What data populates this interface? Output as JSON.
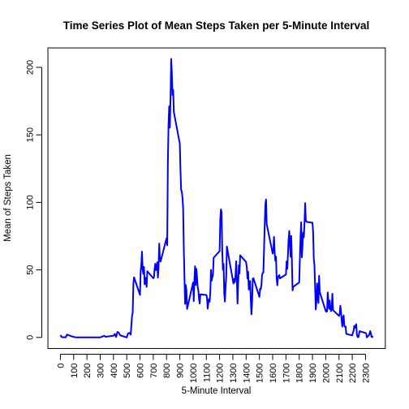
{
  "chart_data": {
    "type": "line",
    "title": "Time Series Plot of Mean Steps Taken per 5-Minute Interval",
    "xlabel": "5-Minute Interval",
    "ylabel": "Mean of Steps Taken",
    "xlim": [
      -94.2,
      2449.2
    ],
    "ylim": [
      -8.2,
      214.4
    ],
    "xticks": [
      0,
      100,
      200,
      300,
      400,
      500,
      600,
      700,
      800,
      900,
      1000,
      1100,
      1200,
      1300,
      1400,
      1500,
      1600,
      1700,
      1800,
      1900,
      2000,
      2100,
      2200,
      2300
    ],
    "yticks": [
      0,
      50,
      100,
      150,
      200
    ],
    "grid": false,
    "series": [
      {
        "color": "#0000ff",
        "points": [
          [
            0,
            1.7
          ],
          [
            10,
            0.3
          ],
          [
            20,
            0.1
          ],
          [
            30,
            0.2
          ],
          [
            40,
            0.0
          ],
          [
            50,
            2.1
          ],
          [
            100,
            0.3
          ],
          [
            110,
            0.2
          ],
          [
            120,
            0.0
          ],
          [
            200,
            0.0
          ],
          [
            300,
            0.0
          ],
          [
            330,
            1.2
          ],
          [
            340,
            0.5
          ],
          [
            400,
            1.2
          ],
          [
            410,
            2.6
          ],
          [
            420,
            0.3
          ],
          [
            430,
            4.1
          ],
          [
            440,
            3.5
          ],
          [
            450,
            1.6
          ],
          [
            500,
            0.0
          ],
          [
            510,
            3.0
          ],
          [
            520,
            3.3
          ],
          [
            530,
            2.1
          ],
          [
            540,
            16.0
          ],
          [
            545,
            18.3
          ],
          [
            550,
            39.5
          ],
          [
            555,
            44.5
          ],
          [
            600,
            31.5
          ],
          [
            605,
            49.3
          ],
          [
            610,
            53.8
          ],
          [
            615,
            63.5
          ],
          [
            620,
            50.0
          ],
          [
            625,
            47.1
          ],
          [
            630,
            52.2
          ],
          [
            635,
            39.3
          ],
          [
            640,
            44.0
          ],
          [
            645,
            44.2
          ],
          [
            650,
            37.4
          ],
          [
            655,
            49.0
          ],
          [
            700,
            43.8
          ],
          [
            705,
            44.4
          ],
          [
            710,
            50.5
          ],
          [
            715,
            54.5
          ],
          [
            720,
            49.9
          ],
          [
            725,
            50.9
          ],
          [
            730,
            55.7
          ],
          [
            735,
            44.3
          ],
          [
            740,
            52.3
          ],
          [
            745,
            69.5
          ],
          [
            750,
            57.8
          ],
          [
            755,
            56.2
          ],
          [
            800,
            73.4
          ],
          [
            805,
            68.2
          ],
          [
            810,
            129.4
          ],
          [
            815,
            157.5
          ],
          [
            820,
            171.2
          ],
          [
            825,
            155.4
          ],
          [
            830,
            177.3
          ],
          [
            835,
            206.2
          ],
          [
            840,
            195.9
          ],
          [
            845,
            179.6
          ],
          [
            850,
            183.4
          ],
          [
            855,
            167.0
          ],
          [
            900,
            143.5
          ],
          [
            905,
            124.0
          ],
          [
            910,
            109.1
          ],
          [
            915,
            108.1
          ],
          [
            920,
            103.7
          ],
          [
            925,
            95.9
          ],
          [
            930,
            66.2
          ],
          [
            935,
            45.2
          ],
          [
            940,
            24.8
          ],
          [
            945,
            38.8
          ],
          [
            950,
            34.9
          ],
          [
            955,
            21.1
          ],
          [
            1000,
            40.6
          ],
          [
            1005,
            26.9
          ],
          [
            1010,
            42.4
          ],
          [
            1015,
            52.7
          ],
          [
            1020,
            38.9
          ],
          [
            1025,
            50.8
          ],
          [
            1030,
            44.3
          ],
          [
            1035,
            37.4
          ],
          [
            1040,
            34.7
          ],
          [
            1045,
            28.3
          ],
          [
            1050,
            25.1
          ],
          [
            1055,
            31.9
          ],
          [
            1100,
            31.4
          ],
          [
            1105,
            29.7
          ],
          [
            1110,
            21.3
          ],
          [
            1115,
            25.5
          ],
          [
            1120,
            28.4
          ],
          [
            1125,
            26.5
          ],
          [
            1130,
            33.4
          ],
          [
            1135,
            50.0
          ],
          [
            1140,
            42.0
          ],
          [
            1145,
            44.6
          ],
          [
            1150,
            46.0
          ],
          [
            1155,
            59.0
          ],
          [
            1200,
            63.9
          ],
          [
            1205,
            87.7
          ],
          [
            1210,
            94.8
          ],
          [
            1215,
            92.8
          ],
          [
            1220,
            63.4
          ],
          [
            1225,
            50.2
          ],
          [
            1230,
            54.5
          ],
          [
            1235,
            32.4
          ],
          [
            1240,
            26.5
          ],
          [
            1245,
            37.7
          ],
          [
            1250,
            45.1
          ],
          [
            1255,
            67.3
          ],
          [
            1300,
            42.3
          ],
          [
            1305,
            39.9
          ],
          [
            1310,
            43.3
          ],
          [
            1315,
            40.9
          ],
          [
            1320,
            46.2
          ],
          [
            1325,
            56.4
          ],
          [
            1330,
            42.8
          ],
          [
            1335,
            25.1
          ],
          [
            1340,
            39.9
          ],
          [
            1345,
            53.5
          ],
          [
            1350,
            47.3
          ],
          [
            1355,
            60.8
          ],
          [
            1400,
            55.8
          ],
          [
            1405,
            51.9
          ],
          [
            1410,
            43.6
          ],
          [
            1415,
            48.7
          ],
          [
            1420,
            35.5
          ],
          [
            1425,
            37.5
          ],
          [
            1430,
            41.8
          ],
          [
            1435,
            27.5
          ],
          [
            1440,
            17.1
          ],
          [
            1445,
            26.1
          ],
          [
            1450,
            43.6
          ],
          [
            1455,
            43.8
          ],
          [
            1500,
            30.0
          ],
          [
            1505,
            36.1
          ],
          [
            1510,
            35.5
          ],
          [
            1515,
            38.8
          ],
          [
            1520,
            46.0
          ],
          [
            1525,
            47.8
          ],
          [
            1530,
            48.1
          ],
          [
            1535,
            65.3
          ],
          [
            1540,
            82.9
          ],
          [
            1545,
            98.7
          ],
          [
            1550,
            102.1
          ],
          [
            1555,
            83.9
          ],
          [
            1600,
            62.1
          ],
          [
            1605,
            64.1
          ],
          [
            1610,
            74.5
          ],
          [
            1615,
            63.2
          ],
          [
            1620,
            56.9
          ],
          [
            1625,
            59.8
          ],
          [
            1630,
            43.9
          ],
          [
            1635,
            38.6
          ],
          [
            1640,
            44.7
          ],
          [
            1645,
            45.5
          ],
          [
            1650,
            46.2
          ],
          [
            1655,
            43.7
          ],
          [
            1700,
            46.6
          ],
          [
            1705,
            56.3
          ],
          [
            1710,
            50.7
          ],
          [
            1715,
            61.2
          ],
          [
            1720,
            72.7
          ],
          [
            1725,
            78.9
          ],
          [
            1730,
            68.9
          ],
          [
            1735,
            59.7
          ],
          [
            1740,
            75.1
          ],
          [
            1745,
            56.5
          ],
          [
            1750,
            34.8
          ],
          [
            1755,
            37.5
          ],
          [
            1800,
            40.7
          ],
          [
            1805,
            58.0
          ],
          [
            1810,
            74.7
          ],
          [
            1815,
            85.3
          ],
          [
            1820,
            59.3
          ],
          [
            1825,
            67.8
          ],
          [
            1830,
            77.7
          ],
          [
            1835,
            74.2
          ],
          [
            1840,
            85.3
          ],
          [
            1845,
            99.5
          ],
          [
            1850,
            86.6
          ],
          [
            1855,
            85.6
          ],
          [
            1900,
            84.9
          ],
          [
            1905,
            77.8
          ],
          [
            1910,
            58.0
          ],
          [
            1915,
            53.4
          ],
          [
            1920,
            36.3
          ],
          [
            1925,
            20.7
          ],
          [
            1930,
            27.4
          ],
          [
            1935,
            40.0
          ],
          [
            1940,
            30.2
          ],
          [
            1945,
            25.5
          ],
          [
            1950,
            45.7
          ],
          [
            1955,
            33.5
          ],
          [
            2000,
            19.6
          ],
          [
            2005,
            19.0
          ],
          [
            2010,
            19.3
          ],
          [
            2015,
            33.3
          ],
          [
            2020,
            26.8
          ],
          [
            2025,
            21.2
          ],
          [
            2030,
            27.3
          ],
          [
            2035,
            21.3
          ],
          [
            2040,
            19.5
          ],
          [
            2045,
            21.3
          ],
          [
            2050,
            32.3
          ],
          [
            2055,
            20.2
          ],
          [
            2100,
            15.9
          ],
          [
            2105,
            17.2
          ],
          [
            2110,
            23.5
          ],
          [
            2115,
            19.2
          ],
          [
            2120,
            12.5
          ],
          [
            2125,
            8.0
          ],
          [
            2130,
            14.7
          ],
          [
            2135,
            16.3
          ],
          [
            2140,
            8.7
          ],
          [
            2145,
            7.8
          ],
          [
            2150,
            8.1
          ],
          [
            2155,
            2.6
          ],
          [
            2200,
            1.5
          ],
          [
            2205,
            3.7
          ],
          [
            2210,
            4.8
          ],
          [
            2215,
            8.5
          ],
          [
            2220,
            7.1
          ],
          [
            2225,
            8.7
          ],
          [
            2230,
            9.8
          ],
          [
            2235,
            2.2
          ],
          [
            2240,
            0.3
          ],
          [
            2245,
            0.1
          ],
          [
            2250,
            1.6
          ],
          [
            2255,
            4.6
          ],
          [
            2300,
            3.3
          ],
          [
            2305,
            2.8
          ],
          [
            2310,
            0.0
          ],
          [
            2315,
            0.8
          ],
          [
            2320,
            1.0
          ],
          [
            2325,
            1.6
          ],
          [
            2330,
            2.6
          ],
          [
            2335,
            4.7
          ],
          [
            2340,
            3.3
          ],
          [
            2345,
            0.6
          ],
          [
            2350,
            0.2
          ],
          [
            2355,
            1.1
          ]
        ]
      }
    ]
  }
}
